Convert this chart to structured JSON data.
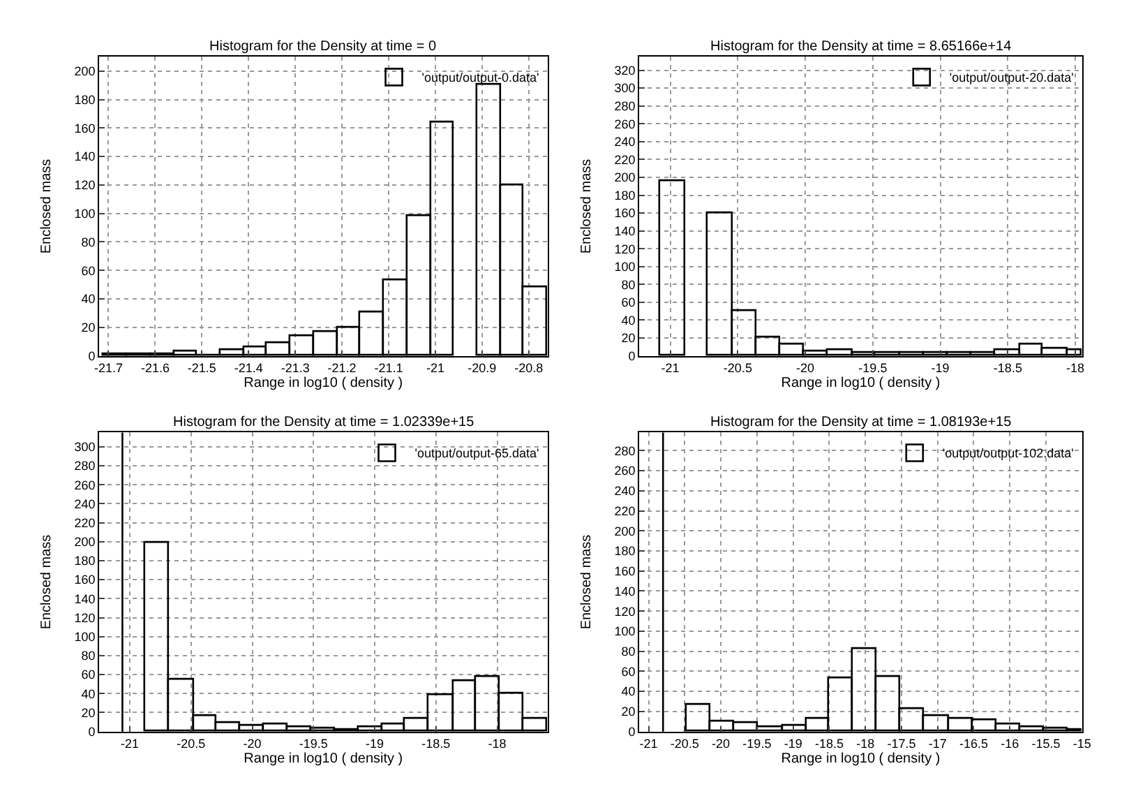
{
  "chart_data": [
    {
      "type": "histogram",
      "title": "Histogram for the Density at time = 0",
      "xlabel": "Range in log10 ( density )",
      "ylabel": "Enclosed mass",
      "bins": [
        -21.71,
        -21.66,
        -21.61,
        -21.56,
        -21.51,
        -21.46,
        -21.41,
        -21.36,
        -21.31,
        -21.26,
        -21.21,
        -21.16,
        -21.11,
        -21.06,
        -21.01,
        -20.96,
        -20.91,
        -20.86,
        -20.81,
        -20.76
      ],
      "series": [
        {
          "name": "'output/output-0.data'",
          "color": "#000000",
          "values": [
            1,
            1,
            1,
            3,
            0,
            4,
            6,
            9,
            14,
            17,
            20,
            31,
            53,
            98,
            164,
            null,
            190,
            120,
            48
          ]
        }
      ],
      "xlim": [
        -21.72,
        -20.76
      ],
      "xticks": [
        -21.7,
        -21.6,
        -21.5,
        -21.4,
        -21.3,
        -21.2,
        -21.1,
        -21,
        -20.9,
        -20.8
      ],
      "ylim": [
        0,
        210
      ],
      "yticks": [
        0,
        20,
        40,
        60,
        80,
        100,
        120,
        140,
        160,
        180,
        200
      ],
      "grid": true,
      "legend": "top right"
    },
    {
      "type": "histogram",
      "title": "Histogram for the Density at time = 8.65166e+14",
      "xlabel": "Range in log10 ( density )",
      "ylabel": "Enclosed mass",
      "bins": [
        -21.07,
        -20.89,
        -20.72,
        -20.54,
        -20.36,
        -20.19,
        -20.01,
        -19.83,
        -19.65,
        -19.48,
        -19.3,
        -19.12,
        -18.95,
        -18.77,
        -18.59,
        -18.41,
        -18.24,
        -18.06,
        -17.95
      ],
      "series": [
        {
          "name": "'output/output-20.data'",
          "color": "#000000",
          "values": [
            195,
            null,
            160,
            51,
            20,
            12,
            5,
            6,
            4,
            4,
            3,
            4,
            3,
            3,
            6,
            13,
            8,
            6
          ]
        }
      ],
      "xlim": [
        -21.23,
        -17.95
      ],
      "xticks": [
        -21,
        -20.5,
        -20,
        -19.5,
        -19,
        -18.5,
        -18
      ],
      "ylim": [
        0,
        335
      ],
      "yticks": [
        0,
        20,
        40,
        60,
        80,
        100,
        120,
        140,
        160,
        180,
        200,
        220,
        240,
        260,
        280,
        300,
        320
      ],
      "grid": true,
      "legend": "top right"
    },
    {
      "type": "histogram",
      "title": "Histogram for the Density at time = 1.02339e+15",
      "xlabel": "Range in log10 ( density )",
      "ylabel": "Enclosed mass",
      "bins": [
        -20.87,
        -20.68,
        -20.48,
        -20.29,
        -20.1,
        -19.9,
        -19.71,
        -19.52,
        -19.33,
        -19.13,
        -18.94,
        -18.75,
        -18.56,
        -18.36,
        -18.17,
        -17.98,
        -17.79,
        -17.59
      ],
      "series": [
        {
          "name": "'output/output-65.data'",
          "color": "#000000",
          "values": [
            199,
            54,
            17,
            9,
            6,
            8,
            4,
            3,
            2,
            4,
            8,
            13,
            39,
            53,
            57,
            40,
            14
          ]
        }
      ],
      "ref_lines": [
        {
          "axis": "x",
          "value": -21.06,
          "color": "#000000"
        }
      ],
      "xlim": [
        -21.25,
        -17.59
      ],
      "xticks": [
        -21,
        -20.5,
        -20,
        -19.5,
        -19,
        -18.5,
        -18
      ],
      "ylim": [
        0,
        315
      ],
      "yticks": [
        0,
        20,
        40,
        60,
        80,
        100,
        120,
        140,
        160,
        180,
        200,
        220,
        240,
        260,
        280,
        300
      ],
      "grid": true,
      "legend": "top right"
    },
    {
      "type": "histogram",
      "title": "Histogram for the Density at time = 1.08193e+15",
      "xlabel": "Range in log10 ( density )",
      "ylabel": "Enclosed mass",
      "bins": [
        -20.47,
        -20.14,
        -19.81,
        -19.48,
        -19.15,
        -18.82,
        -18.5,
        -18.17,
        -17.84,
        -17.51,
        -17.18,
        -16.85,
        -16.52,
        -16.19,
        -15.86,
        -15.53,
        -15.2,
        -15.0
      ],
      "series": [
        {
          "name": "'output/output-102.data'",
          "color": "#000000",
          "values": [
            27,
            10,
            8,
            4,
            6,
            13,
            53,
            82,
            54,
            23,
            16,
            12,
            11,
            7,
            4,
            3,
            2
          ]
        }
      ],
      "ref_lines": [
        {
          "axis": "x",
          "value": -20.8,
          "color": "#000000"
        }
      ],
      "xlim": [
        -21.13,
        -15.0
      ],
      "xticks": [
        -21,
        -20.5,
        -20,
        -19.5,
        -19,
        -18.5,
        -18,
        -17.5,
        -17,
        -16.5,
        -16,
        -15.5,
        -15
      ],
      "ylim": [
        0,
        298
      ],
      "yticks": [
        0,
        20,
        40,
        60,
        80,
        100,
        120,
        140,
        160,
        180,
        200,
        220,
        240,
        260,
        280
      ],
      "grid": true,
      "legend": "top right"
    }
  ]
}
